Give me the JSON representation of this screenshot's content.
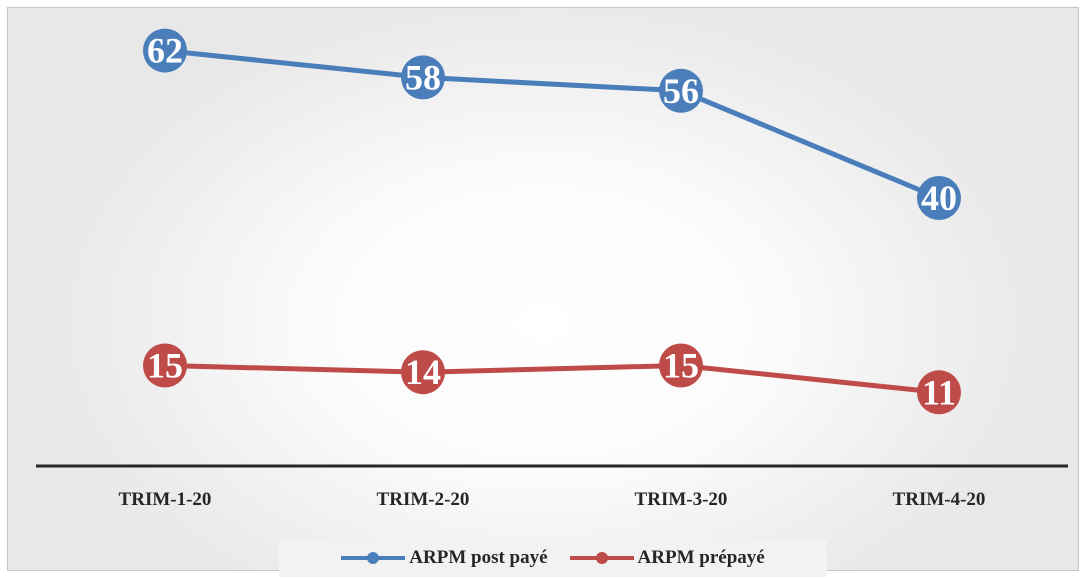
{
  "chart_data": {
    "type": "line",
    "categories": [
      "TRIM-1-20",
      "TRIM-2-20",
      "TRIM-3-20",
      "TRIM-4-20"
    ],
    "series": [
      {
        "name": "ARPM post payé",
        "values": [
          62,
          58,
          56,
          40
        ],
        "color": "#4a7ebb"
      },
      {
        "name": "ARPM prépayé",
        "values": [
          15,
          14,
          15,
          11
        ],
        "color": "#be4b48"
      }
    ],
    "title": "",
    "xlabel": "",
    "ylabel": "",
    "ylim": [
      0,
      75
    ],
    "grid": false,
    "data_labels": true,
    "legend_position": "bottom"
  }
}
